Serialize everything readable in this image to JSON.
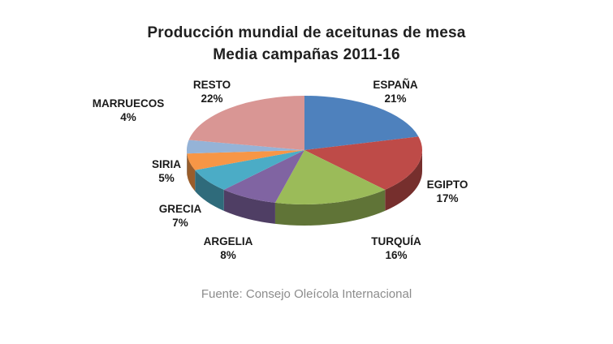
{
  "title": {
    "line1": "Producción mundial de aceitunas de mesa",
    "line2": "Media campañas 2011-16"
  },
  "footer": "Fuente: Consejo Oleícola Internacional",
  "chart_data": {
    "type": "pie",
    "style": "3d",
    "title": "Producción mundial de aceitunas de mesa",
    "subtitle": "Media campañas 2011-16",
    "categories": [
      "ESPAÑA",
      "EGIPTO",
      "TURQUÍA",
      "ARGELIA",
      "GRECIA",
      "SIRIA",
      "MARRUECOS",
      "RESTO"
    ],
    "values": [
      21,
      17,
      16,
      8,
      7,
      5,
      4,
      22
    ],
    "unit": "%",
    "colors": [
      "#4E81BD",
      "#BE4B48",
      "#9BBB59",
      "#8064A2",
      "#4BACC6",
      "#F79646",
      "#95B3D7",
      "#D99694"
    ],
    "start_angle_deg": -90,
    "direction": "clockwise",
    "legend": "none",
    "source": "Fuente: Consejo Oleícola Internacional"
  }
}
